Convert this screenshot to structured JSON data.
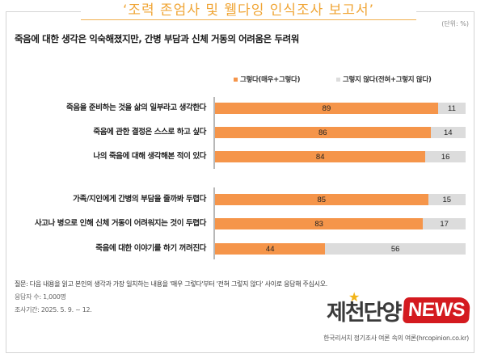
{
  "report": {
    "title": "‘조력 존엄사 및 웰다잉 인식조사 보고서’",
    "unit": "(단위: %)",
    "headline": "죽음에 대한 생각은 익숙해졌지만, 간병 부담과 신체 거동의 어려움은 두려워"
  },
  "legend": {
    "agree": "그렇다(매우+그렇다)",
    "disagree": "그렇지 않다(전혀+그렇지 않다)"
  },
  "colors": {
    "agree": "#f5954a",
    "disagree": "#dcdcdc",
    "title_accent": "#f0a535",
    "logo_red": "#d41a1f",
    "logo_star": "#f2b418"
  },
  "chart_data": {
    "type": "bar",
    "orientation": "horizontal",
    "stacked": true,
    "title": "죽음에 대한 생각은 익숙해졌지만, 간병 부담과 신체 거동의 어려움은 두려워",
    "unit": "%",
    "legend_position": "top-right",
    "grid": false,
    "categories": [
      "죽음을 준비하는 것을 삶의 일부라고 생각한다",
      "죽음에 관한 결정은 스스로 하고 싶다",
      "나의 죽음에 대해 생각해본 적이 있다",
      "가족/지인에게 간병의 부담을 줄까봐 두렵다",
      "사고나 병으로 인해 신체 거동이 어려워지는 것이 두렵다",
      "죽음에 대한 이야기를 하기 꺼려진다"
    ],
    "series": [
      {
        "name": "그렇다(매우+그렇다)",
        "values": [
          89,
          86,
          84,
          85,
          83,
          44
        ]
      },
      {
        "name": "그렇지 않다(전혀+그렇지 않다)",
        "values": [
          11,
          14,
          16,
          15,
          17,
          56
        ]
      }
    ],
    "xlim": [
      0,
      100
    ]
  },
  "rows": [
    {
      "label": "죽음을 준비하는 것을 삶의 일부라고 생각한다",
      "agree": "89",
      "disagree": "11",
      "agree_pct": 89,
      "disagree_pct": 11
    },
    {
      "label": "죽음에 관한 결정은 스스로 하고 싶다",
      "agree": "86",
      "disagree": "14",
      "agree_pct": 86,
      "disagree_pct": 14
    },
    {
      "label": "나의 죽음에 대해 생각해본 적이 있다",
      "agree": "84",
      "disagree": "16",
      "agree_pct": 84,
      "disagree_pct": 16
    },
    {
      "label": "가족/지인에게 간병의 부담을 줄까봐 두렵다",
      "agree": "85",
      "disagree": "15",
      "agree_pct": 85,
      "disagree_pct": 15
    },
    {
      "label": "사고나 병으로 인해 신체 거동이 어려워지는 것이 두렵다",
      "agree": "83",
      "disagree": "17",
      "agree_pct": 83,
      "disagree_pct": 17
    },
    {
      "label": "죽음에 대한 이야기를 하기 꺼려진다",
      "agree": "44",
      "disagree": "56",
      "agree_pct": 44,
      "disagree_pct": 56
    }
  ],
  "footnotes": {
    "question": "질문: 다음 내용을 읽고 본인의 생각과 가장 일치하는 내용을 '매우 그렇다'부터 '전혀 그렇지 않다' 사이로 응답해 주십시오.",
    "respondents": "응답자 수: 1,000명",
    "period": "조사기간: 2025. 5. 9. ~ 12."
  },
  "logo": {
    "korean": "제천단양",
    "news": "NEWS",
    "star": "★"
  },
  "source": "한국리서치 정기조사 여론 속의 여론(hrcopinion.co.kr)"
}
